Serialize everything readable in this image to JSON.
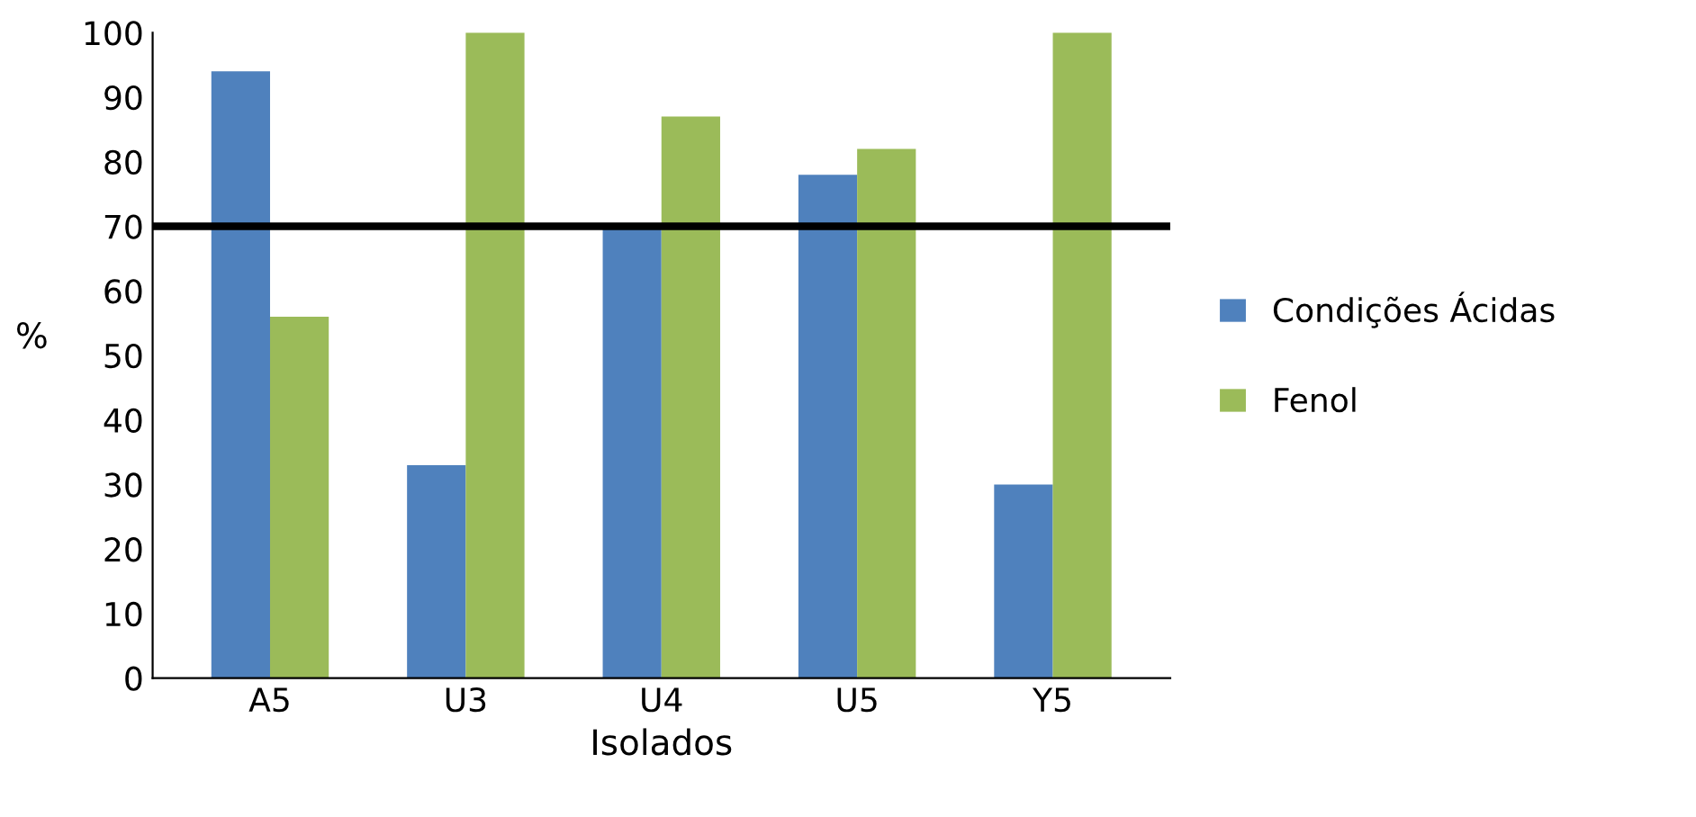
{
  "chart_data": {
    "type": "bar",
    "xlabel": "Isolados",
    "ylabel": "%",
    "categories": [
      "A5",
      "U3",
      "U4",
      "U5",
      "Y5"
    ],
    "series": [
      {
        "name": "Condições Ácidas",
        "color": "#4f81bd",
        "values": [
          94,
          33,
          70,
          78,
          30
        ]
      },
      {
        "name": "Fenol",
        "color": "#9bbb59",
        "values": [
          56,
          100,
          87,
          82,
          100
        ]
      }
    ],
    "ylim": [
      0,
      100
    ],
    "yticks": [
      0,
      10,
      20,
      30,
      40,
      50,
      60,
      70,
      80,
      90,
      100
    ],
    "ref_lines": [
      {
        "axis": "y",
        "value": 70,
        "color": "#000000",
        "line_style": "solid"
      }
    ],
    "grid": false,
    "legend": "right"
  }
}
